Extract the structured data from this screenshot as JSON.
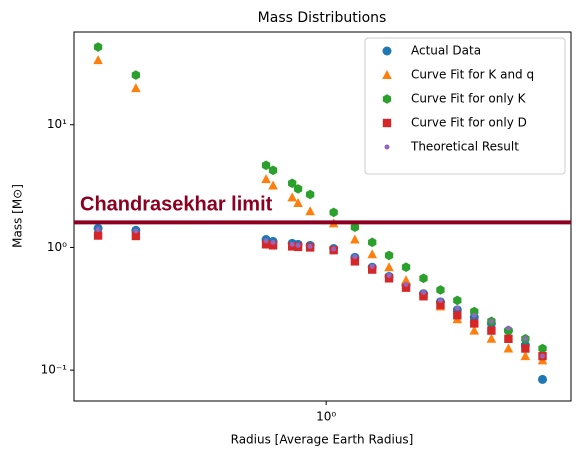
{
  "chart_data": {
    "type": "scatter",
    "title": "Mass Distributions",
    "x_label": "Radius [Average Earth Radius]",
    "y_label": "Mass [M⊙]",
    "log_x": true,
    "log_y": true,
    "xlim": [
      0.141,
      6.7
    ],
    "ylim": [
      0.056,
      57
    ],
    "xticks": [
      {
        "value": 1,
        "label": "10⁰"
      }
    ],
    "yticks": [
      {
        "value": 0.1,
        "label": "10⁻¹"
      },
      {
        "value": 1,
        "label": "10⁰"
      },
      {
        "value": 10,
        "label": "10¹"
      }
    ],
    "legend": "upper right",
    "x": [
      0.17,
      0.228,
      0.627,
      0.662,
      0.768,
      0.804,
      0.883,
      1.06,
      1.25,
      1.43,
      1.63,
      1.86,
      2.13,
      2.43,
      2.77,
      3.16,
      3.61,
      4.12,
      4.7,
      5.37
    ],
    "series": [
      {
        "name": "Actual Data",
        "color": "#1f77b4",
        "marker": "circle",
        "values": [
          1.43,
          1.38,
          1.16,
          1.12,
          1.08,
          1.06,
          1.04,
          0.98,
          0.83,
          0.69,
          0.58,
          0.49,
          0.42,
          0.36,
          0.31,
          0.27,
          0.24,
          0.21,
          0.16,
          0.084
        ]
      },
      {
        "name": "Curve Fit for K and q",
        "color": "#ff7f0e",
        "marker": "triangle",
        "values": [
          33.6,
          19.9,
          3.6,
          3.2,
          2.56,
          2.3,
          1.97,
          1.57,
          1.16,
          0.88,
          0.69,
          0.54,
          0.42,
          0.33,
          0.26,
          0.21,
          0.18,
          0.15,
          0.13,
          0.12
        ]
      },
      {
        "name": "Curve Fit for only K",
        "color": "#2ca02c",
        "marker": "hexagon",
        "values": [
          43,
          25.4,
          4.67,
          4.25,
          3.33,
          3.0,
          2.7,
          1.93,
          1.46,
          1.1,
          0.86,
          0.69,
          0.56,
          0.45,
          0.37,
          0.3,
          0.25,
          0.21,
          0.18,
          0.15
        ]
      },
      {
        "name": "Curve Fit for only D",
        "color": "#d62728",
        "marker": "square",
        "values": [
          1.25,
          1.24,
          1.06,
          1.04,
          1.02,
          1.01,
          1.0,
          0.95,
          0.77,
          0.66,
          0.56,
          0.47,
          0.4,
          0.34,
          0.28,
          0.24,
          0.21,
          0.18,
          0.15,
          0.13
        ]
      },
      {
        "name": "Theoretical Result",
        "color": "#9467bd",
        "marker": "dot",
        "values": [
          1.4,
          1.36,
          1.13,
          1.1,
          1.06,
          1.04,
          1.02,
          0.97,
          0.84,
          0.7,
          0.59,
          0.5,
          0.43,
          0.37,
          0.32,
          0.28,
          0.25,
          0.22,
          0.18,
          0.13
        ]
      }
    ],
    "hline": {
      "value": 1.6,
      "color": "#8b0020",
      "label": "Chandrasekhar limit"
    }
  }
}
